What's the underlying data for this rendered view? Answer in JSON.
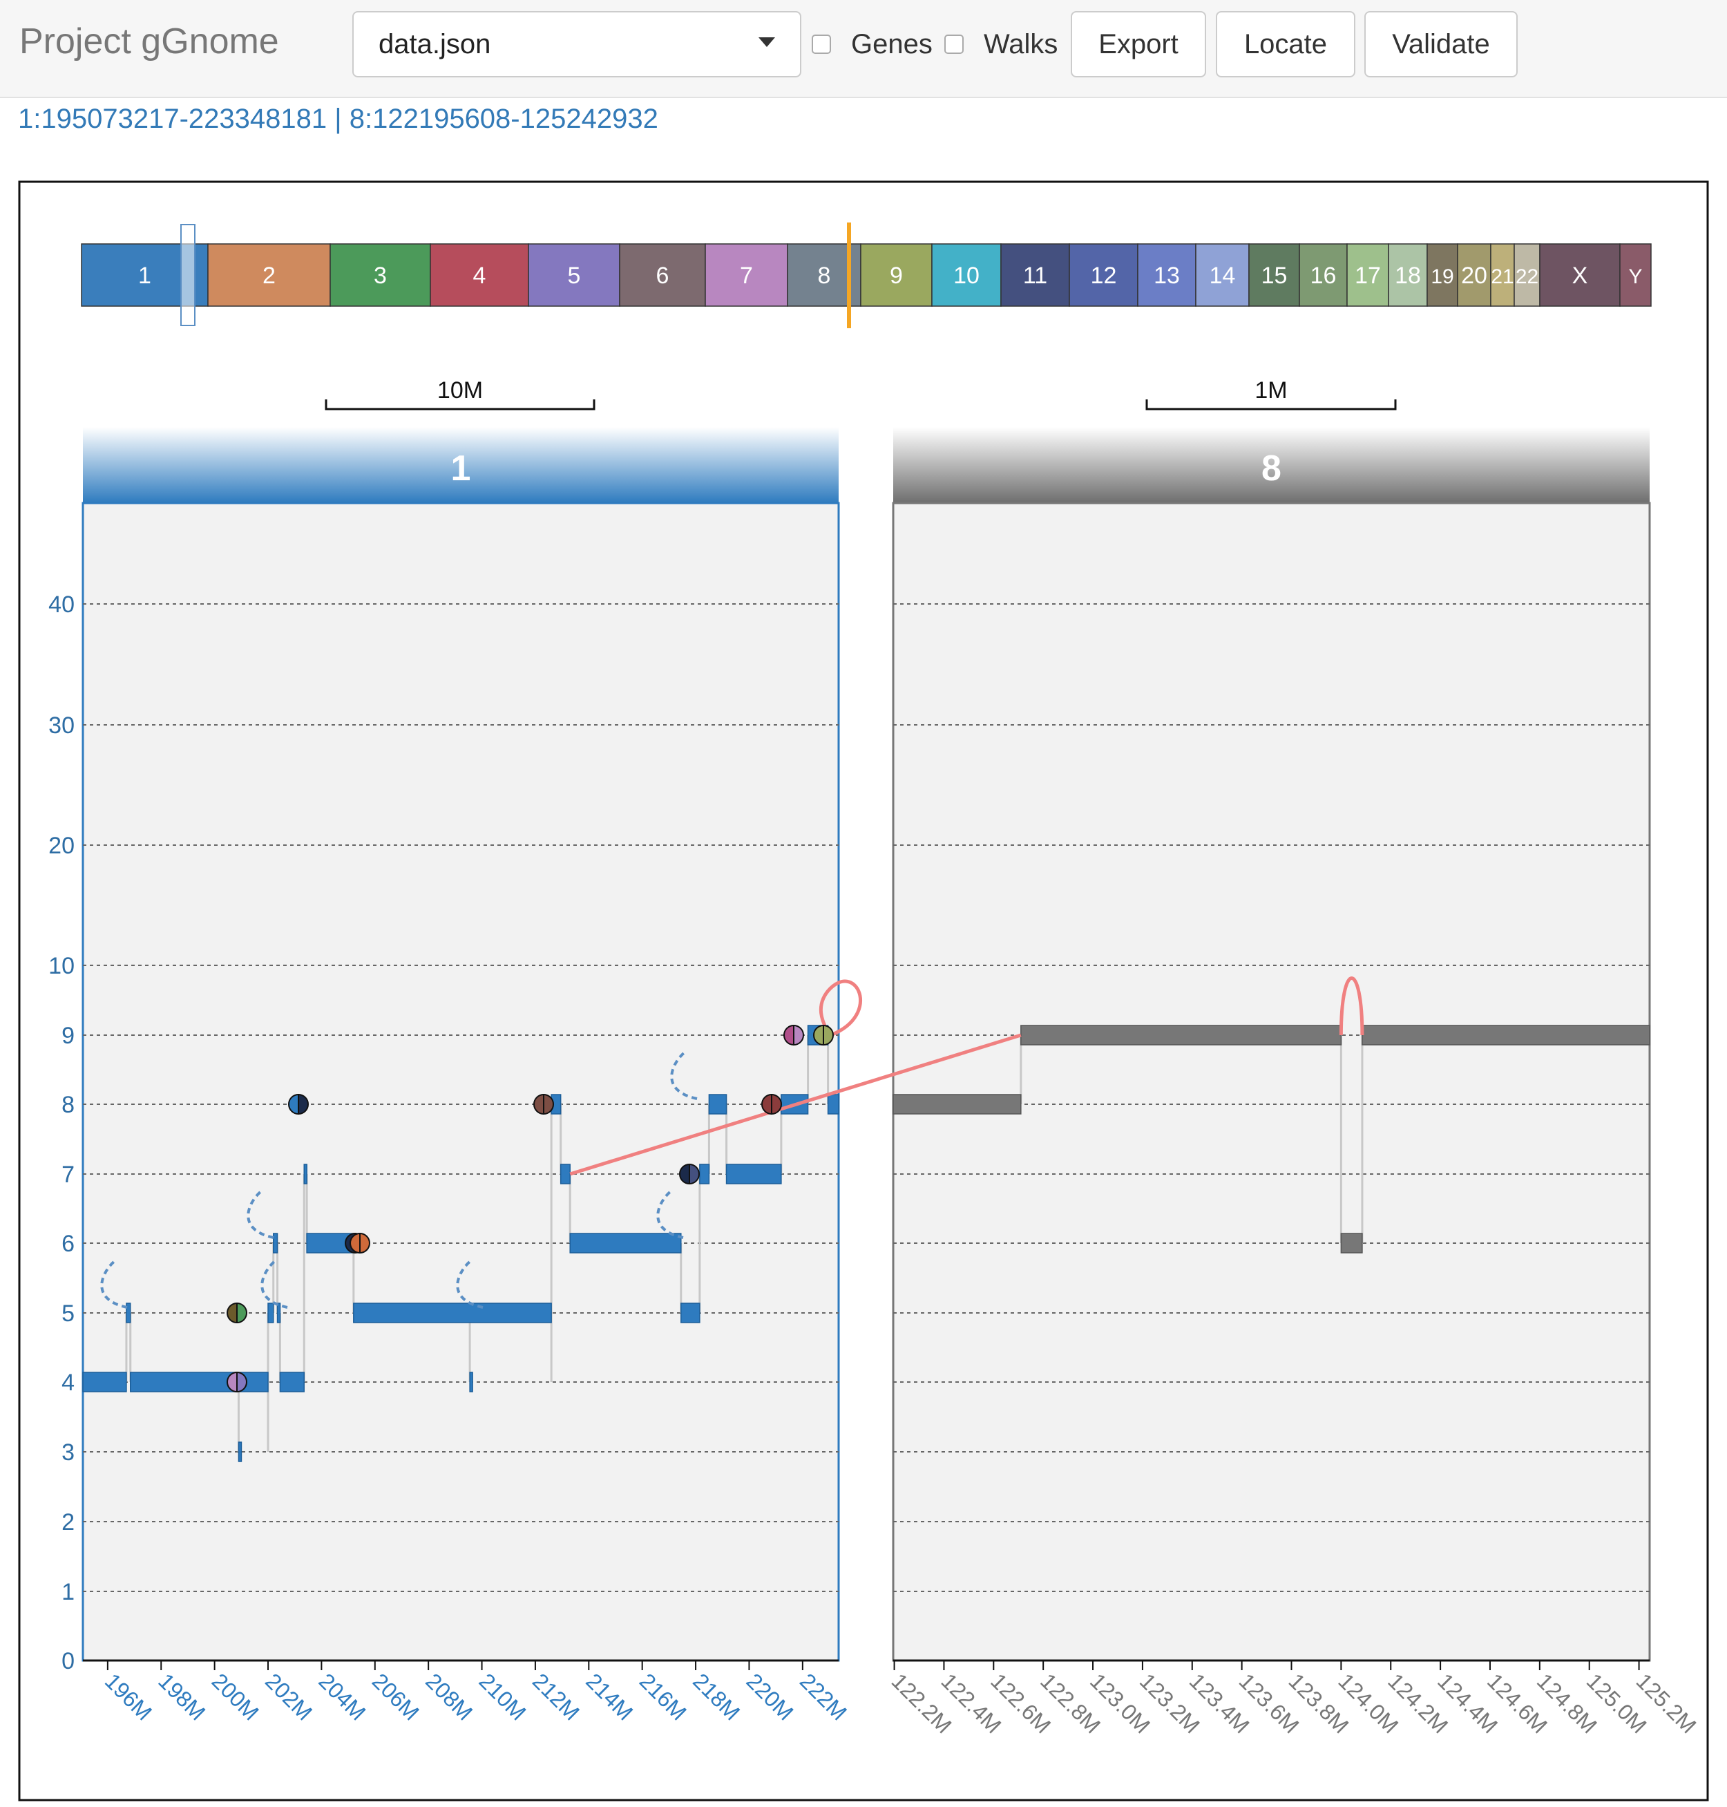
{
  "header": {
    "title": "Project gGnome",
    "file_select": {
      "value": "data.json"
    },
    "genes_label": "Genes",
    "walks_label": "Walks",
    "export_label": "Export",
    "locate_label": "Locate",
    "validate_label": "Validate"
  },
  "locus_text": "1:195073217-223348181 | 8:122195608-125242932",
  "colors": {
    "chr1": "#2e7bbf",
    "chr8": "#777777",
    "junction": "#f08080",
    "loose_end": "#5b8fc4",
    "highlight": "#f5a623",
    "panel_bg": "#f2f2f2"
  },
  "genome_bar": {
    "chromosomes": [
      {
        "label": "1",
        "color": "#3a7ebc"
      },
      {
        "label": "2",
        "color": "#cf8a5e"
      },
      {
        "label": "3",
        "color": "#4c9a5a"
      },
      {
        "label": "4",
        "color": "#b64d5c"
      },
      {
        "label": "5",
        "color": "#8478bf"
      },
      {
        "label": "6",
        "color": "#7d6a6f"
      },
      {
        "label": "7",
        "color": "#b887c0"
      },
      {
        "label": "8",
        "color": "#74828f"
      },
      {
        "label": "9",
        "color": "#9aa85f"
      },
      {
        "label": "10",
        "color": "#43b1c8"
      },
      {
        "label": "11",
        "color": "#44507f"
      },
      {
        "label": "12",
        "color": "#5365a8"
      },
      {
        "label": "13",
        "color": "#6b7ec6"
      },
      {
        "label": "14",
        "color": "#8fa2d6"
      },
      {
        "label": "15",
        "color": "#5f7b60"
      },
      {
        "label": "16",
        "color": "#7e9a72"
      },
      {
        "label": "17",
        "color": "#9ec08c"
      },
      {
        "label": "18",
        "color": "#acc4a6"
      },
      {
        "label": "19",
        "color": "#7e7660"
      },
      {
        "label": "20",
        "color": "#a19a6c"
      },
      {
        "label": "21",
        "color": "#bdb07a"
      },
      {
        "label": "22",
        "color": "#beb9a6"
      },
      {
        "label": "X",
        "color": "#6e5462"
      },
      {
        "label": "Y",
        "color": "#8a5b69"
      }
    ],
    "selected_chromosome": "1",
    "marked_chromosome": "8"
  },
  "panels": [
    {
      "chromosome": "1",
      "header_label": "1",
      "scale_bar_label": "10M",
      "x_range": [
        195073217,
        223348181
      ],
      "x_ticks": [
        {
          "value": 196000000,
          "label": "196M"
        },
        {
          "value": 198000000,
          "label": "198M"
        },
        {
          "value": 200000000,
          "label": "200M"
        },
        {
          "value": 202000000,
          "label": "202M"
        },
        {
          "value": 204000000,
          "label": "204M"
        },
        {
          "value": 206000000,
          "label": "206M"
        },
        {
          "value": 208000000,
          "label": "208M"
        },
        {
          "value": 210000000,
          "label": "210M"
        },
        {
          "value": 212000000,
          "label": "212M"
        },
        {
          "value": 214000000,
          "label": "214M"
        },
        {
          "value": 216000000,
          "label": "216M"
        },
        {
          "value": 218000000,
          "label": "218M"
        },
        {
          "value": 220000000,
          "label": "220M"
        },
        {
          "value": 222000000,
          "label": "222M"
        }
      ],
      "y_ticks": [
        0,
        1,
        2,
        3,
        4,
        5,
        6,
        7,
        8,
        9,
        10,
        20,
        30,
        40
      ]
    },
    {
      "chromosome": "8",
      "header_label": "8",
      "scale_bar_label": "1M",
      "x_range": [
        122195608,
        125242932
      ],
      "x_ticks": [
        {
          "value": 122200000,
          "label": "122.2M"
        },
        {
          "value": 122400000,
          "label": "122.4M"
        },
        {
          "value": 122600000,
          "label": "122.6M"
        },
        {
          "value": 122800000,
          "label": "122.8M"
        },
        {
          "value": 123000000,
          "label": "123.0M"
        },
        {
          "value": 123200000,
          "label": "123.2M"
        },
        {
          "value": 123400000,
          "label": "123.4M"
        },
        {
          "value": 123600000,
          "label": "123.6M"
        },
        {
          "value": 123800000,
          "label": "123.8M"
        },
        {
          "value": 124000000,
          "label": "124.0M"
        },
        {
          "value": 124200000,
          "label": "124.2M"
        },
        {
          "value": 124400000,
          "label": "124.4M"
        },
        {
          "value": 124600000,
          "label": "124.6M"
        },
        {
          "value": 124800000,
          "label": "124.8M"
        },
        {
          "value": 125000000,
          "label": "125.0M"
        },
        {
          "value": 125200000,
          "label": "125.2M"
        }
      ],
      "y_ticks": []
    }
  ],
  "segments": [
    {
      "chr": "1",
      "start": 195073217,
      "end": 196700000,
      "cn": 4
    },
    {
      "chr": "1",
      "start": 196700000,
      "end": 196850000,
      "cn": 5
    },
    {
      "chr": "1",
      "start": 196850000,
      "end": 202000000,
      "cn": 4
    },
    {
      "chr": "1",
      "start": 200900000,
      "end": 200960000,
      "cn": 3
    },
    {
      "chr": "1",
      "start": 202000000,
      "end": 202200000,
      "cn": 5
    },
    {
      "chr": "1",
      "start": 202200000,
      "end": 202350000,
      "cn": 6
    },
    {
      "chr": "1",
      "start": 202350000,
      "end": 202450000,
      "cn": 5
    },
    {
      "chr": "1",
      "start": 202450000,
      "end": 203350000,
      "cn": 4
    },
    {
      "chr": "1",
      "start": 203350000,
      "end": 203450000,
      "cn": 7
    },
    {
      "chr": "1",
      "start": 203450000,
      "end": 205200000,
      "cn": 6
    },
    {
      "chr": "1",
      "start": 205200000,
      "end": 212600000,
      "cn": 5
    },
    {
      "chr": "1",
      "start": 209550000,
      "end": 209620000,
      "cn": 4
    },
    {
      "chr": "1",
      "start": 212600000,
      "end": 212950000,
      "cn": 8
    },
    {
      "chr": "1",
      "start": 212950000,
      "end": 213300000,
      "cn": 7
    },
    {
      "chr": "1",
      "start": 213300000,
      "end": 217450000,
      "cn": 6
    },
    {
      "chr": "1",
      "start": 217450000,
      "end": 218150000,
      "cn": 5
    },
    {
      "chr": "1",
      "start": 218150000,
      "end": 218500000,
      "cn": 7
    },
    {
      "chr": "1",
      "start": 218500000,
      "end": 219150000,
      "cn": 8
    },
    {
      "chr": "1",
      "start": 219150000,
      "end": 221200000,
      "cn": 7
    },
    {
      "chr": "1",
      "start": 221200000,
      "end": 222200000,
      "cn": 8
    },
    {
      "chr": "1",
      "start": 222200000,
      "end": 222950000,
      "cn": 9
    },
    {
      "chr": "1",
      "start": 222950000,
      "end": 223348181,
      "cn": 8
    },
    {
      "chr": "8",
      "start": 122195608,
      "end": 122710000,
      "cn": 8
    },
    {
      "chr": "8",
      "start": 122710000,
      "end": 124000000,
      "cn": 9
    },
    {
      "chr": "8",
      "start": 124000000,
      "end": 124085000,
      "cn": 6
    },
    {
      "chr": "8",
      "start": 124085000,
      "end": 125242932,
      "cn": 9
    }
  ],
  "junctions": [
    {
      "from": {
        "chr": "1",
        "pos": 213300000,
        "cn": 7
      },
      "to": {
        "chr": "8",
        "pos": 122710000,
        "cn": 9
      }
    },
    {
      "from": {
        "chr": "1",
        "pos": 222950000,
        "cn": 9
      },
      "to": {
        "chr": "1",
        "pos": 222950000,
        "cn": 9
      }
    },
    {
      "from": {
        "chr": "8",
        "pos": 124000000,
        "cn": 9
      },
      "to": {
        "chr": "8",
        "pos": 124085000,
        "cn": 9
      }
    }
  ]
}
